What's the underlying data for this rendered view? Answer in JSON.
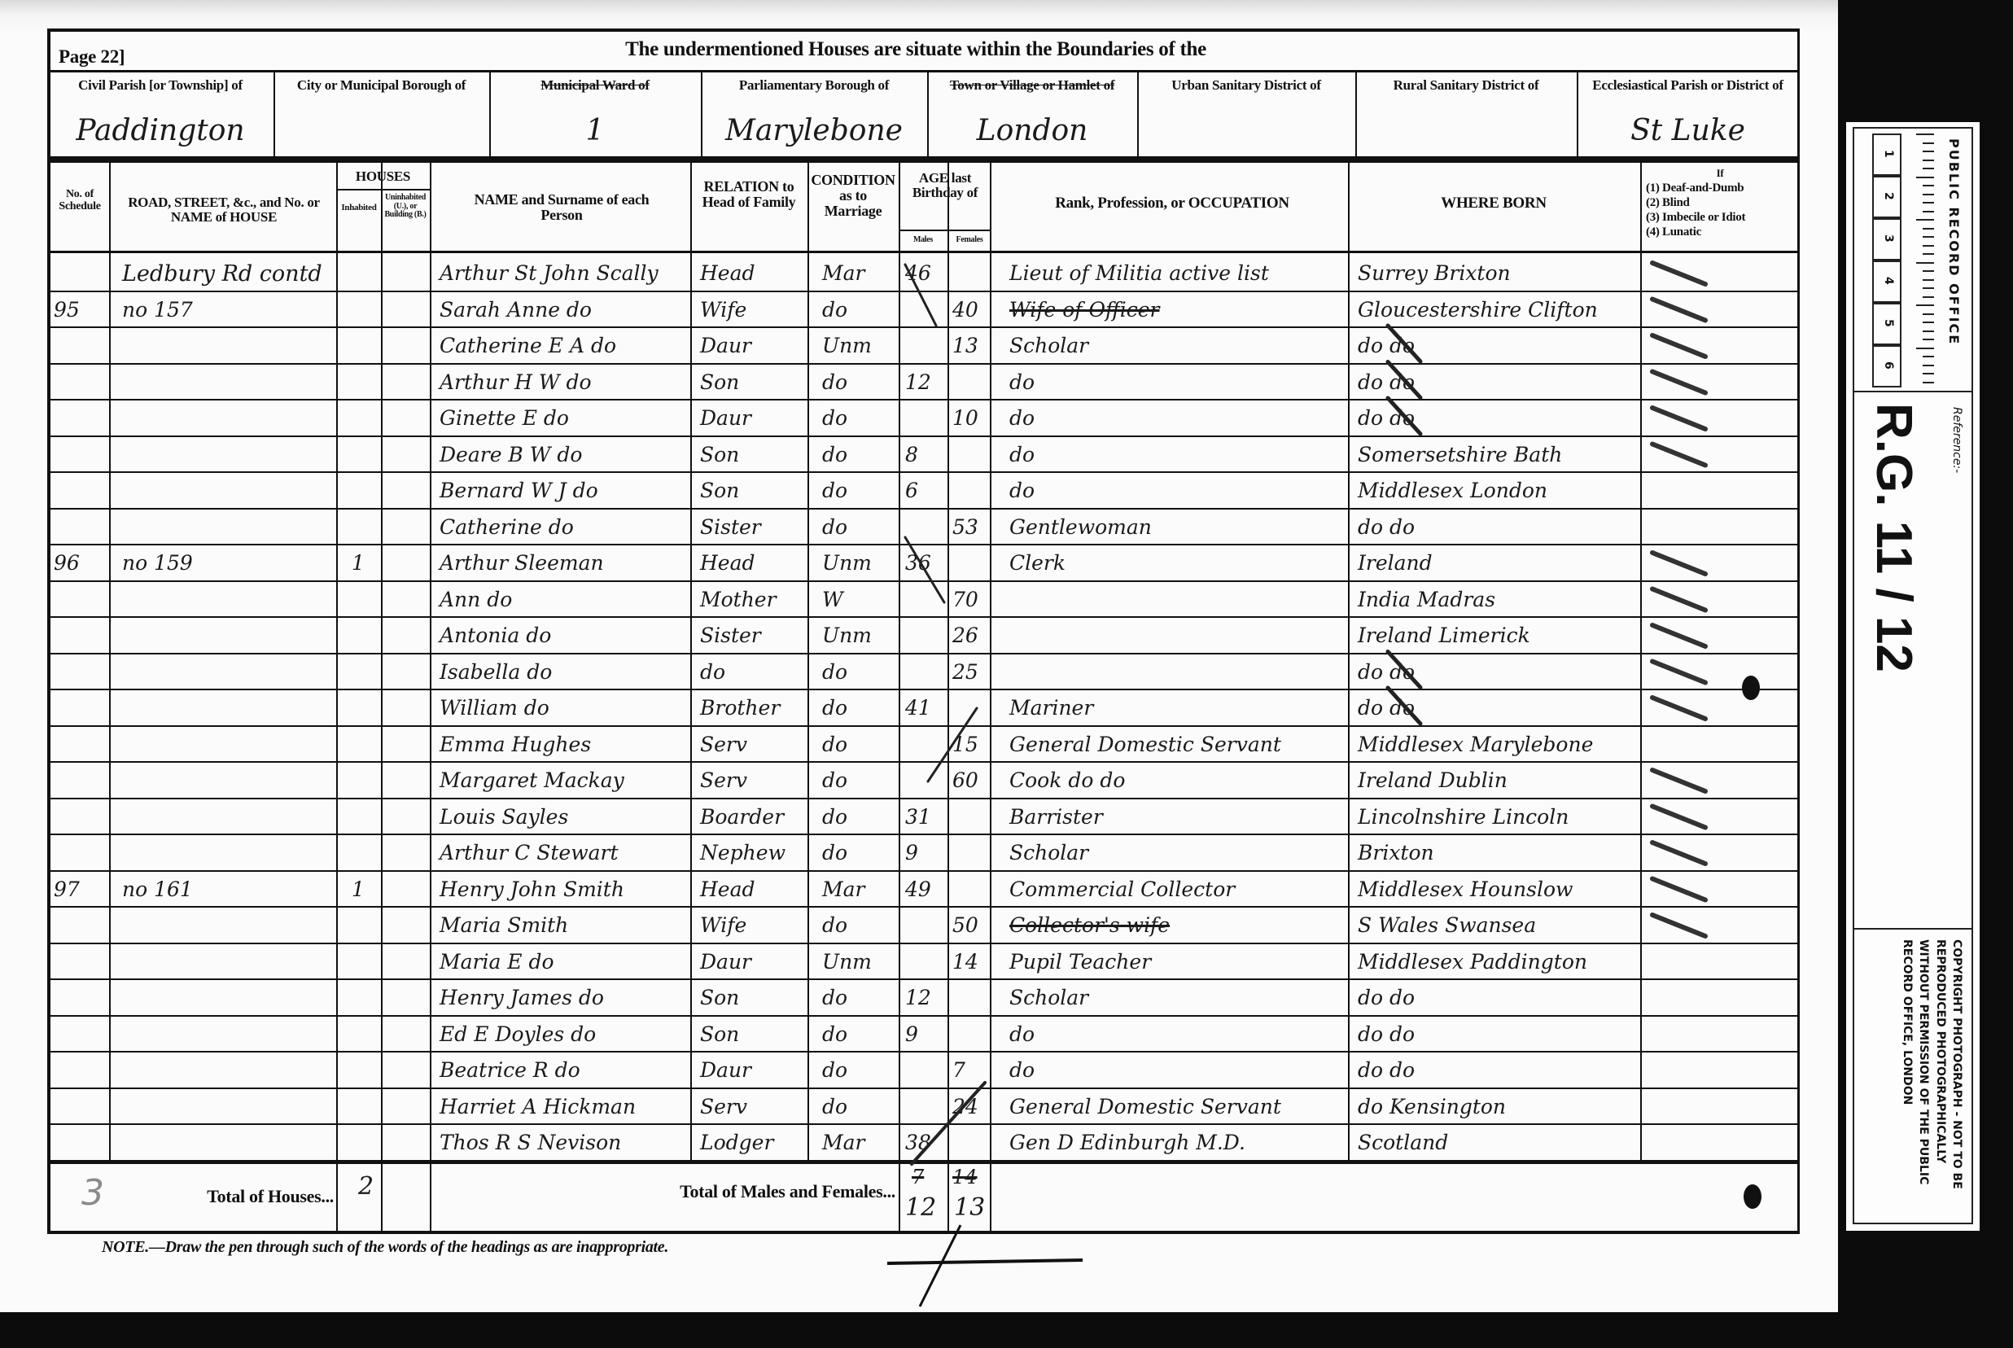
{
  "header": {
    "page_label": "Page 22]",
    "title": "The undermentioned Houses are situate within the Boundaries of the",
    "districts": [
      {
        "label": "Civil Parish [or Township] of",
        "value": "Paddington"
      },
      {
        "label": "City or Municipal Borough of",
        "value": ""
      },
      {
        "label": "Municipal Ward of",
        "value": "1"
      },
      {
        "label": "Parliamentary Borough of",
        "value": "Marylebone"
      },
      {
        "label": "Town or Village or Hamlet of",
        "value": "London"
      },
      {
        "label": "Urban Sanitary District of",
        "value": ""
      },
      {
        "label": "Rural Sanitary District of",
        "value": ""
      },
      {
        "label": "Ecclesiastical Parish or District of",
        "value": "St Luke"
      }
    ]
  },
  "columns": {
    "schedule": "No. of Schedule",
    "road": "ROAD, STREET, &c., and No. or NAME of HOUSE",
    "houses": "HOUSES",
    "inhabited": "Inhabited",
    "uninhabited": "Uninhabited (U.), or Building (B.)",
    "name": "NAME and Surname of each Person",
    "relation": "RELATION to Head of Family",
    "condition": "CONDITION as to Marriage",
    "age": "AGE last Birthday of",
    "males": "Males",
    "females": "Females",
    "occupation": "Rank, Profession, or OCCUPATION",
    "born": "WHERE BORN",
    "infirmity_title": "If",
    "infirmity": [
      "(1) Deaf-and-Dumb",
      "(2) Blind",
      "(3) Imbecile or Idiot",
      "(4) Lunatic"
    ]
  },
  "rows": [
    {
      "schedule": "",
      "road": "Ledbury Rd contd",
      "inhabited": "",
      "name": "Arthur St John Scally",
      "relation": "Head",
      "condition": "Mar",
      "male": "46",
      "female": "",
      "occupation": "Lieut of Militia active list",
      "born": "Surrey Brixton"
    },
    {
      "schedule": "95",
      "road": "no 157",
      "inhabited": "",
      "name": "Sarah Anne do",
      "relation": "Wife",
      "condition": "do",
      "male": "",
      "female": "40",
      "occupation": "Wife of Officer",
      "occupation_struck": true,
      "born": "Gloucestershire Clifton"
    },
    {
      "schedule": "",
      "road": "",
      "inhabited": "",
      "name": "Catherine E A do",
      "relation": "Daur",
      "condition": "Unm",
      "male": "",
      "female": "13",
      "occupation": "Scholar",
      "born": "do do"
    },
    {
      "schedule": "",
      "road": "",
      "inhabited": "",
      "name": "Arthur H W do",
      "relation": "Son",
      "condition": "do",
      "male": "12",
      "female": "",
      "occupation": "do",
      "born": "do do"
    },
    {
      "schedule": "",
      "road": "",
      "inhabited": "",
      "name": "Ginette E do",
      "relation": "Daur",
      "condition": "do",
      "male": "",
      "female": "10",
      "occupation": "do",
      "born": "do do"
    },
    {
      "schedule": "",
      "road": "",
      "inhabited": "",
      "name": "Deare B W do",
      "relation": "Son",
      "condition": "do",
      "male": "8",
      "female": "",
      "occupation": "do",
      "born": "Somersetshire Bath"
    },
    {
      "schedule": "",
      "road": "",
      "inhabited": "",
      "name": "Bernard W J do",
      "relation": "Son",
      "condition": "do",
      "male": "6",
      "female": "",
      "occupation": "do",
      "born": "Middlesex London"
    },
    {
      "schedule": "",
      "road": "",
      "inhabited": "",
      "name": "Catherine do",
      "relation": "Sister",
      "condition": "do",
      "male": "",
      "female": "53",
      "occupation": "Gentlewoman",
      "born": "do do"
    },
    {
      "schedule": "96",
      "road": "no 159",
      "inhabited": "1",
      "name": "Arthur Sleeman",
      "relation": "Head",
      "condition": "Unm",
      "male": "36",
      "female": "",
      "occupation": "Clerk",
      "born": "Ireland"
    },
    {
      "schedule": "",
      "road": "",
      "inhabited": "",
      "name": "Ann do",
      "relation": "Mother",
      "condition": "W",
      "male": "",
      "female": "70",
      "occupation": "",
      "born": "India Madras"
    },
    {
      "schedule": "",
      "road": "",
      "inhabited": "",
      "name": "Antonia do",
      "relation": "Sister",
      "condition": "Unm",
      "male": "",
      "female": "26",
      "occupation": "",
      "born": "Ireland Limerick"
    },
    {
      "schedule": "",
      "road": "",
      "inhabited": "",
      "name": "Isabella do",
      "relation": "do",
      "condition": "do",
      "male": "",
      "female": "25",
      "occupation": "",
      "born": "do do"
    },
    {
      "schedule": "",
      "road": "",
      "inhabited": "",
      "name": "William do",
      "relation": "Brother",
      "condition": "do",
      "male": "41",
      "female": "",
      "occupation": "Mariner",
      "born": "do do"
    },
    {
      "schedule": "",
      "road": "",
      "inhabited": "",
      "name": "Emma Hughes",
      "relation": "Serv",
      "condition": "do",
      "male": "",
      "female": "15",
      "occupation": "General Domestic Servant",
      "born": "Middlesex Marylebone"
    },
    {
      "schedule": "",
      "road": "",
      "inhabited": "",
      "name": "Margaret Mackay",
      "relation": "Serv",
      "condition": "do",
      "male": "",
      "female": "60",
      "occupation": "Cook do do",
      "born": "Ireland Dublin"
    },
    {
      "schedule": "",
      "road": "",
      "inhabited": "",
      "name": "Louis Sayles",
      "relation": "Boarder",
      "condition": "do",
      "male": "31",
      "female": "",
      "occupation": "Barrister",
      "born": "Lincolnshire Lincoln"
    },
    {
      "schedule": "",
      "road": "",
      "inhabited": "",
      "name": "Arthur C Stewart",
      "relation": "Nephew",
      "condition": "do",
      "male": "9",
      "female": "",
      "occupation": "Scholar",
      "born": "Brixton"
    },
    {
      "schedule": "97",
      "road": "no 161",
      "inhabited": "1",
      "name": "Henry John Smith",
      "relation": "Head",
      "condition": "Mar",
      "male": "49",
      "female": "",
      "occupation": "Commercial Collector",
      "born": "Middlesex Hounslow"
    },
    {
      "schedule": "",
      "road": "",
      "inhabited": "",
      "name": "Maria Smith",
      "relation": "Wife",
      "condition": "do",
      "male": "",
      "female": "50",
      "occupation": "Collector's wife",
      "occupation_struck": true,
      "born": "S Wales Swansea"
    },
    {
      "schedule": "",
      "road": "",
      "inhabited": "",
      "name": "Maria E do",
      "relation": "Daur",
      "condition": "Unm",
      "male": "",
      "female": "14",
      "occupation": "Pupil Teacher",
      "born": "Middlesex Paddington"
    },
    {
      "schedule": "",
      "road": "",
      "inhabited": "",
      "name": "Henry James do",
      "relation": "Son",
      "condition": "do",
      "male": "12",
      "female": "",
      "occupation": "Scholar",
      "born": "do do"
    },
    {
      "schedule": "",
      "road": "",
      "inhabited": "",
      "name": "Ed E Doyles do",
      "relation": "Son",
      "condition": "do",
      "male": "9",
      "female": "",
      "occupation": "do",
      "born": "do do"
    },
    {
      "schedule": "",
      "road": "",
      "inhabited": "",
      "name": "Beatrice R do",
      "relation": "Daur",
      "condition": "do",
      "male": "",
      "female": "7",
      "occupation": "do",
      "born": "do do"
    },
    {
      "schedule": "",
      "road": "",
      "inhabited": "",
      "name": "Harriet A Hickman",
      "relation": "Serv",
      "condition": "do",
      "male": "",
      "female": "24",
      "occupation": "General Domestic Servant",
      "born": "do Kensington"
    },
    {
      "schedule": "",
      "road": "",
      "inhabited": "",
      "name": "Thos R S Nevison",
      "relation": "Lodger",
      "condition": "Mar",
      "male": "38",
      "female": "",
      "occupation": "Gen D Edinburgh M.D.",
      "born": "Scotland"
    }
  ],
  "totals": {
    "pencil_count": "3",
    "houses_label": "Total of Houses...",
    "houses_value": "2",
    "persons_label": "Total of Males and Females...",
    "males_struck": "7",
    "males": "12",
    "females_struck": "14",
    "females": "13"
  },
  "note": "NOTE.—Draw the pen through such of the words of the headings as are inappropriate.",
  "reference_label": {
    "office": "PUBLIC RECORD OFFICE",
    "ruler_numbers": [
      "1",
      "2",
      "3",
      "4",
      "5",
      "6"
    ],
    "reference_caption": "Reference:-",
    "reference": "R.G. 11 / 12",
    "copyright": "COPYRIGHT PHOTOGRAPH - NOT TO BE REPRODUCED PHOTOGRAPHICALLY WITHOUT PERMISSION OF THE PUBLIC RECORD OFFICE, LONDON"
  }
}
